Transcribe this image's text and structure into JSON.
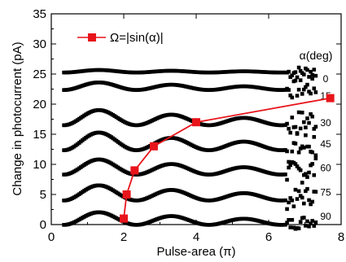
{
  "chart_data": {
    "type": "scatter",
    "xlabel": "Pulse-area (π)",
    "ylabel": "Change in photocurrent (pA)",
    "xlim": [
      0,
      8
    ],
    "ylim": [
      0,
      35
    ],
    "x_ticks": [
      0,
      2,
      4,
      6,
      8
    ],
    "y_ticks": [
      0,
      5,
      10,
      15,
      20,
      25,
      30,
      35
    ],
    "grid": false,
    "legend_position": "top-left",
    "legend_label": "Ω=|sin(α)|",
    "curve_group_title": "α(deg)",
    "curve_color": "#000000",
    "highlight_color": "#e8141b",
    "series": [
      {
        "name": "0",
        "baseline": 24.3,
        "amp": 0.5,
        "offset": 1.2,
        "end_scatter": 1.0
      },
      {
        "name": "15",
        "baseline": 21.5,
        "amp": 1.5,
        "offset": 1.6,
        "end_scatter": 1.5
      },
      {
        "name": "30",
        "baseline": 17.0,
        "amp": 3.0,
        "offset": 1.0,
        "end_scatter": 2.0
      },
      {
        "name": "45",
        "baseline": 13.5,
        "amp": 3.5,
        "offset": 0.6,
        "end_scatter": 2.5
      },
      {
        "name": "60",
        "baseline": 9.5,
        "amp": 3.0,
        "offset": 0.3,
        "end_scatter": 2.0
      },
      {
        "name": "75",
        "baseline": 5.5,
        "amp": 3.0,
        "offset": 0.0,
        "end_scatter": 1.5
      },
      {
        "name": "90",
        "baseline": 1.5,
        "amp": 2.5,
        "offset": -0.3,
        "end_scatter": 1.0
      }
    ],
    "omega_curve": {
      "name": "Ω=|sin(α)|",
      "x": [
        2.0,
        2.08,
        2.3,
        2.83,
        4.0,
        7.7
      ],
      "y": [
        1,
        5,
        9,
        13,
        17,
        21
      ]
    }
  }
}
